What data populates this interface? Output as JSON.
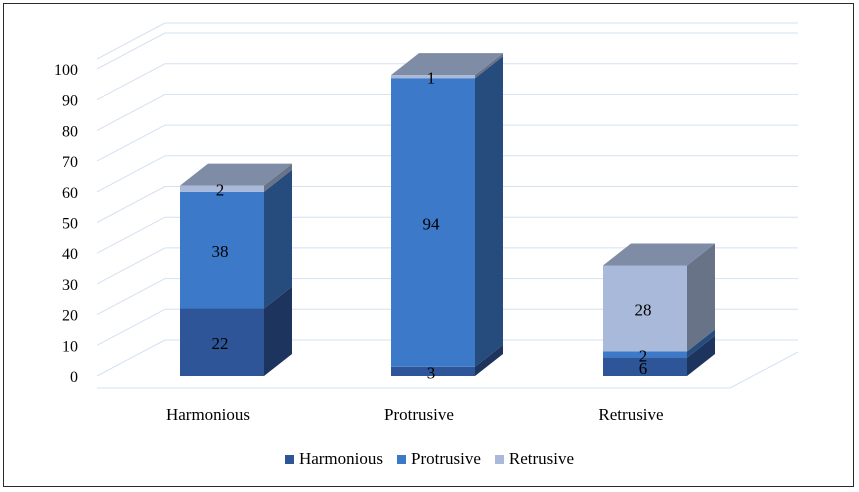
{
  "chart_data": {
    "type": "bar",
    "stacked": true,
    "three_d": true,
    "categories": [
      "Harmonious",
      "Protrusive",
      "Retrusive"
    ],
    "series": [
      {
        "name": "Harmonious",
        "values": [
          22,
          3,
          6
        ],
        "color": "#2E5597"
      },
      {
        "name": "Protrusive",
        "values": [
          38,
          94,
          2
        ],
        "color": "#3C7AC9"
      },
      {
        "name": "Retrusive",
        "values": [
          2,
          1,
          28
        ],
        "color": "#A9B9DA"
      }
    ],
    "ylim": [
      0,
      100
    ],
    "yticks": [
      0,
      10,
      20,
      30,
      40,
      50,
      60,
      70,
      80,
      90,
      100
    ],
    "grid": true,
    "legend_position": "bottom",
    "title": "",
    "xlabel": "",
    "ylabel": ""
  },
  "legend": {
    "items": [
      {
        "label": "Harmonious",
        "color": "#2E5597"
      },
      {
        "label": "Protrusive",
        "color": "#3C7AC9"
      },
      {
        "label": "Retrusive",
        "color": "#A9B9DA"
      }
    ]
  }
}
